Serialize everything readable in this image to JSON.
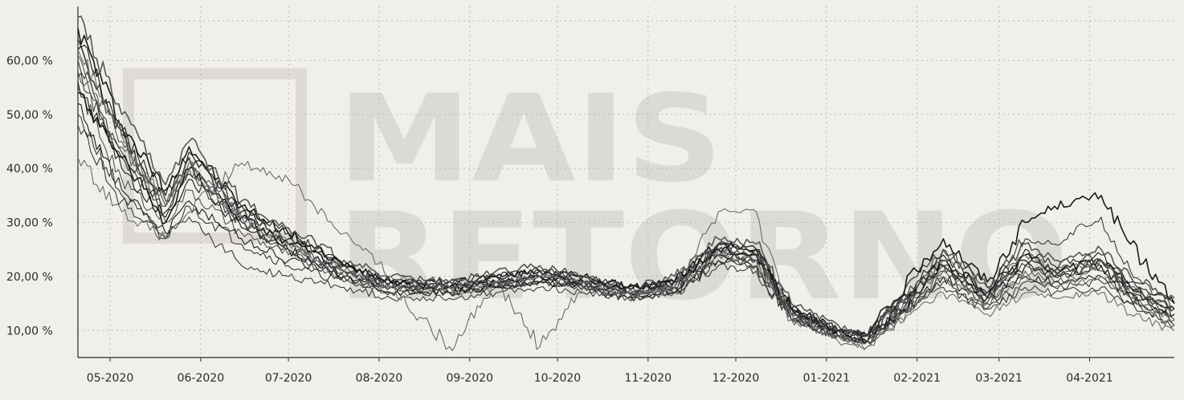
{
  "chart_data": {
    "type": "line",
    "title": "",
    "xlabel": "",
    "ylabel": "",
    "y_ticks": [
      10,
      20,
      30,
      40,
      50,
      60
    ],
    "y_tick_labels": [
      "10,00 %",
      "20,00 %",
      "30,00 %",
      "40,00 %",
      "50,00 %",
      "60,00 %"
    ],
    "ylim": [
      5,
      70
    ],
    "x_ticks": [
      "05-2020",
      "06-2020",
      "07-2020",
      "08-2020",
      "09-2020",
      "10-2020",
      "11-2020",
      "12-2020",
      "01-2021",
      "02-2021",
      "03-2021",
      "04-2021"
    ],
    "xlim": [
      "2020-04-20",
      "2021-04-30"
    ],
    "grid": true,
    "legend": "none",
    "watermark": [
      "MAIS",
      "RETORNO"
    ],
    "line_color": "#1e1e1e",
    "anchor_dates": [
      "2020-04-20",
      "2020-05-05",
      "2020-05-20",
      "2020-05-28",
      "2020-06-15",
      "2020-07-01",
      "2020-07-20",
      "2020-08-05",
      "2020-08-25",
      "2020-09-10",
      "2020-09-25",
      "2020-10-10",
      "2020-10-25",
      "2020-11-10",
      "2020-11-25",
      "2020-12-08",
      "2020-12-20",
      "2021-01-05",
      "2021-01-15",
      "2021-02-01",
      "2021-02-10",
      "2021-02-25",
      "2021-03-10",
      "2021-03-20",
      "2021-04-05",
      "2021-04-15",
      "2021-04-30"
    ],
    "series": [
      {
        "values": [
          66,
          48,
          36,
          44,
          33,
          28,
          22,
          19,
          19,
          20,
          21,
          20,
          18,
          19,
          26,
          25,
          14,
          10,
          8,
          18,
          23,
          17,
          24,
          21,
          23,
          18,
          14
        ]
      },
      {
        "values": [
          60,
          42,
          32,
          40,
          30,
          25,
          21,
          18,
          18,
          19,
          20,
          19,
          17,
          18,
          25,
          24,
          13,
          9,
          8,
          17,
          22,
          16,
          22,
          20,
          22,
          17,
          13
        ]
      },
      {
        "values": [
          55,
          38,
          30,
          36,
          28,
          24,
          20,
          17,
          17,
          18,
          19,
          18,
          16,
          17,
          24,
          23,
          12,
          9,
          8,
          16,
          21,
          15,
          21,
          19,
          21,
          16,
          12
        ]
      },
      {
        "values": [
          52,
          36,
          28,
          34,
          27,
          23,
          20,
          17,
          17,
          18,
          19,
          18,
          16,
          17,
          23,
          22,
          12,
          9,
          8,
          16,
          20,
          15,
          20,
          19,
          20,
          16,
          12
        ]
      },
      {
        "values": [
          62,
          46,
          34,
          42,
          32,
          27,
          22,
          19,
          18,
          20,
          21,
          19,
          17,
          19,
          26,
          25,
          14,
          10,
          9,
          18,
          22,
          16,
          23,
          21,
          23,
          18,
          14
        ]
      },
      {
        "values": [
          58,
          44,
          33,
          41,
          31,
          26,
          21,
          18,
          18,
          19,
          20,
          19,
          17,
          18,
          25,
          24,
          13,
          10,
          9,
          17,
          21,
          16,
          22,
          20,
          22,
          17,
          13
        ]
      },
      {
        "values": [
          64,
          47,
          35,
          43,
          33,
          28,
          22,
          19,
          19,
          20,
          21,
          20,
          18,
          19,
          26,
          25,
          14,
          10,
          9,
          19,
          24,
          17,
          25,
          22,
          24,
          19,
          15
        ]
      },
      {
        "values": [
          50,
          35,
          27,
          33,
          26,
          22,
          19,
          17,
          17,
          18,
          19,
          18,
          16,
          17,
          23,
          22,
          12,
          9,
          8,
          15,
          19,
          14,
          19,
          18,
          19,
          15,
          11
        ]
      },
      {
        "values": [
          68,
          50,
          37,
          45,
          34,
          29,
          23,
          20,
          19,
          21,
          22,
          20,
          18,
          20,
          27,
          26,
          15,
          11,
          9,
          20,
          25,
          18,
          26,
          23,
          25,
          20,
          16
        ]
      },
      {
        "values": [
          56,
          40,
          31,
          38,
          29,
          25,
          20,
          18,
          17,
          18,
          19,
          18,
          17,
          18,
          24,
          23,
          13,
          9,
          8,
          17,
          22,
          16,
          22,
          20,
          22,
          17,
          13
        ]
      },
      {
        "values": [
          48,
          34,
          27,
          31,
          22,
          20,
          18,
          16,
          16,
          17,
          18,
          17,
          16,
          17,
          22,
          21,
          12,
          9,
          8,
          15,
          18,
          14,
          18,
          17,
          18,
          15,
          11
        ]
      },
      {
        "values": [
          61,
          45,
          33,
          40,
          31,
          26,
          21,
          18,
          18,
          19,
          20,
          19,
          17,
          18,
          25,
          24,
          13,
          10,
          9,
          18,
          23,
          17,
          24,
          21,
          23,
          18,
          14
        ]
      },
      {
        "values": [
          54,
          42,
          30,
          40,
          31,
          26,
          22,
          19,
          18,
          19,
          20,
          19,
          18,
          19,
          25,
          24,
          14,
          10,
          9,
          21,
          27,
          19,
          30,
          33,
          35,
          26,
          15
        ]
      },
      {
        "values": [
          57,
          43,
          32,
          39,
          30,
          25,
          21,
          18,
          18,
          19,
          20,
          19,
          17,
          18,
          24,
          23,
          13,
          10,
          9,
          19,
          25,
          18,
          27,
          26,
          31,
          21,
          14
        ]
      },
      {
        "values": [
          42,
          32,
          27,
          32,
          41,
          38,
          28,
          20,
          18,
          19,
          20,
          19,
          17,
          18,
          32,
          32,
          12,
          8,
          7,
          14,
          17,
          13,
          17,
          16,
          17,
          13,
          10
        ]
      },
      {
        "values": [
          62,
          46,
          34,
          40,
          31,
          26,
          21,
          18,
          7,
          19,
          7,
          18,
          16,
          18,
          24,
          23,
          13,
          9,
          7,
          15,
          20,
          15,
          20,
          18,
          20,
          16,
          12
        ]
      }
    ]
  }
}
